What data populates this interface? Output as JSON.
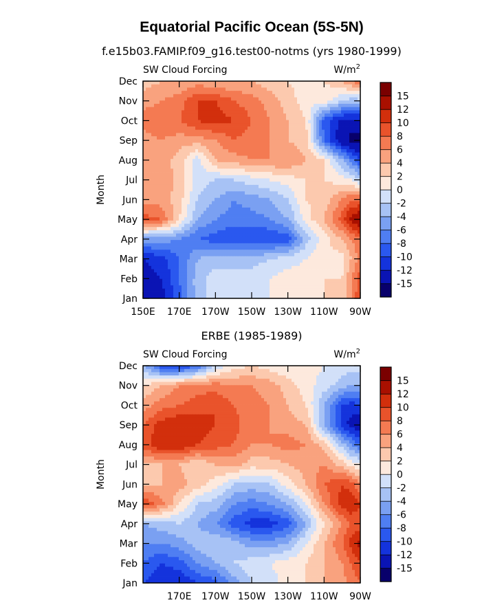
{
  "figure": {
    "title": "Equatorial Pacific Ocean (5S-5N)",
    "subtitle": "f.e15b03.FAMIP.f09_g16.test00-notms (yrs 1980-1999)"
  },
  "chart_data": [
    {
      "type": "heatmap",
      "subtitle": "",
      "left_label": "SW Cloud Forcing",
      "right_label": "W/m",
      "right_label_sup": "2",
      "ylabel": "Month",
      "xlabel": "",
      "x_ticks": [
        "150E",
        "170E",
        "170W",
        "150W",
        "130W",
        "110W",
        "90W"
      ],
      "x_tick_lon": [
        150,
        170,
        190,
        210,
        230,
        250,
        270
      ],
      "x_range": [
        150,
        270
      ],
      "y_ticks": [
        "Jan",
        "Feb",
        "Mar",
        "Apr",
        "May",
        "Jun",
        "Jul",
        "Aug",
        "Sep",
        "Oct",
        "Nov",
        "Dec"
      ],
      "grid": false,
      "legend": "right colorbar",
      "colorbar_labels": [
        "15",
        "12",
        "10",
        "8",
        "6",
        "4",
        "2",
        "0",
        "-2",
        "-4",
        "-6",
        "-8",
        "-10",
        "-12",
        "-15"
      ],
      "levels": [
        -15,
        -12,
        -10,
        -8,
        -6,
        -4,
        -2,
        0,
        2,
        4,
        6,
        8,
        10,
        12,
        15
      ],
      "colors": [
        "#08006b",
        "#0a14b4",
        "#1433dc",
        "#2a58ef",
        "#4f7ef2",
        "#7aa0f2",
        "#a7c2f5",
        "#d2e0f9",
        "#fde9dd",
        "#fcc9ae",
        "#f9a27e",
        "#f47a52",
        "#e9532b",
        "#d22f0c",
        "#a91000",
        "#7a0000"
      ],
      "lon": [
        150,
        160,
        170,
        180,
        190,
        200,
        210,
        220,
        230,
        240,
        250,
        260,
        265,
        270
      ],
      "values": [
        [
          -13,
          -13,
          -9,
          -3,
          -1,
          -1,
          -1,
          0,
          1,
          1,
          2,
          3,
          6,
          10
        ],
        [
          -13,
          -12,
          -8,
          -3,
          -1,
          -1,
          -1,
          0,
          1,
          1,
          2,
          2,
          6,
          9
        ],
        [
          -12,
          -11,
          -8,
          -4,
          -3,
          -3,
          -3,
          -2,
          -1,
          0,
          2,
          1,
          4,
          7
        ],
        [
          -5,
          -5,
          -6,
          -8,
          -9,
          -10,
          -10,
          -10,
          -9,
          -3,
          1,
          4,
          6,
          8
        ],
        [
          9,
          8,
          2,
          -4,
          -6,
          -7,
          -7,
          -6,
          -4,
          1,
          4,
          9,
          13,
          15
        ],
        [
          5,
          5,
          3,
          -2,
          -4,
          -6,
          -5,
          -4,
          -2,
          2,
          3,
          6,
          8,
          8
        ],
        [
          4,
          6,
          3,
          -1,
          -2,
          -2,
          -1,
          0,
          1,
          2,
          2,
          1,
          0,
          -2
        ],
        [
          4,
          5,
          3,
          -1,
          4,
          5,
          6,
          6,
          6,
          4,
          2,
          -4,
          -7,
          -10
        ],
        [
          5,
          6,
          5,
          5,
          6,
          8,
          7,
          6,
          4,
          3,
          -8,
          -14,
          -16,
          -16
        ],
        [
          7,
          8,
          8,
          10,
          11,
          10,
          8,
          6,
          4,
          2,
          -9,
          -13,
          -13,
          -13
        ],
        [
          5,
          6,
          7,
          10,
          10,
          8,
          7,
          5,
          3,
          1,
          1,
          -2,
          -3,
          -3
        ],
        [
          3,
          4,
          4,
          5,
          4,
          4,
          4,
          3,
          2,
          1,
          2,
          4,
          6,
          8
        ]
      ]
    },
    {
      "type": "heatmap",
      "subtitle": "ERBE (1985-1989)",
      "left_label": "SW Cloud Forcing",
      "right_label": "W/m",
      "right_label_sup": "2",
      "ylabel": "Month",
      "xlabel": "",
      "x_ticks": [
        "170E",
        "170W",
        "150W",
        "130W",
        "110W",
        "90W"
      ],
      "x_tick_lon": [
        170,
        190,
        210,
        230,
        250,
        270
      ],
      "x_range": [
        150,
        270
      ],
      "y_ticks": [
        "Jan",
        "Feb",
        "Mar",
        "Apr",
        "May",
        "Jun",
        "Jul",
        "Aug",
        "Sep",
        "Oct",
        "Nov",
        "Dec"
      ],
      "grid": false,
      "legend": "right colorbar",
      "colorbar_labels": [
        "15",
        "12",
        "10",
        "8",
        "6",
        "4",
        "2",
        "0",
        "-2",
        "-4",
        "-6",
        "-8",
        "-10",
        "-12",
        "-15"
      ],
      "levels": [
        -15,
        -12,
        -10,
        -8,
        -6,
        -4,
        -2,
        0,
        2,
        4,
        6,
        8,
        10,
        12,
        15
      ],
      "colors": [
        "#08006b",
        "#0a14b4",
        "#1433dc",
        "#2a58ef",
        "#4f7ef2",
        "#7aa0f2",
        "#a7c2f5",
        "#d2e0f9",
        "#fde9dd",
        "#fcc9ae",
        "#f9a27e",
        "#f47a52",
        "#e9532b",
        "#d22f0c",
        "#a91000",
        "#7a0000"
      ],
      "lon": [
        150,
        160,
        170,
        180,
        190,
        200,
        210,
        220,
        230,
        240,
        250,
        260,
        265,
        270
      ],
      "values": [
        [
          -10,
          -12,
          -12,
          -10,
          -9,
          -5,
          -2,
          -1,
          1,
          2,
          4,
          5,
          7,
          8
        ],
        [
          -8,
          -10,
          -9,
          -6,
          -4,
          -2,
          -1,
          0,
          1,
          2,
          4,
          6,
          8,
          10
        ],
        [
          -6,
          -6,
          -5,
          -3,
          -2,
          -3,
          -5,
          -5,
          -4,
          0,
          4,
          8,
          11,
          13
        ],
        [
          -4,
          -3,
          -2,
          -4,
          -6,
          -9,
          -11,
          -11,
          -9,
          -4,
          2,
          6,
          8,
          9
        ],
        [
          10,
          7,
          2,
          -2,
          -3,
          -6,
          -7,
          -6,
          -4,
          0,
          6,
          11,
          12,
          10
        ],
        [
          4,
          4,
          5,
          3,
          1,
          -2,
          -3,
          -2,
          1,
          4,
          8,
          10,
          9,
          6
        ],
        [
          3,
          4,
          4,
          2,
          4,
          5,
          3,
          3,
          4,
          5,
          6,
          3,
          1,
          0
        ],
        [
          9,
          12,
          12,
          10,
          9,
          8,
          6,
          6,
          7,
          6,
          3,
          -3,
          -6,
          -8
        ],
        [
          8,
          11,
          12,
          11,
          10,
          9,
          6,
          6,
          5,
          4,
          -4,
          -11,
          -13,
          -14
        ],
        [
          5,
          7,
          8,
          9,
          10,
          8,
          7,
          6,
          4,
          2,
          -4,
          -10,
          -11,
          -10
        ],
        [
          2,
          4,
          6,
          7,
          7,
          6,
          6,
          5,
          3,
          1,
          -1,
          -3,
          -4,
          -4
        ],
        [
          -3,
          -10,
          -11,
          -8,
          -2,
          1,
          2,
          1,
          0,
          1,
          0,
          -1,
          -1,
          -1
        ]
      ]
    }
  ]
}
